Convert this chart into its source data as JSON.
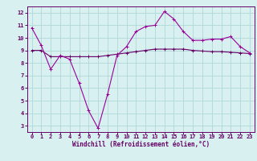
{
  "xlabel": "Windchill (Refroidissement éolien,°C)",
  "x_values": [
    0,
    1,
    2,
    3,
    4,
    5,
    6,
    7,
    8,
    9,
    10,
    11,
    12,
    13,
    14,
    15,
    16,
    17,
    18,
    19,
    20,
    21,
    22,
    23
  ],
  "line1_y": [
    10.8,
    9.4,
    7.5,
    8.6,
    8.3,
    6.4,
    4.2,
    2.8,
    5.5,
    8.6,
    9.3,
    10.5,
    10.9,
    11.0,
    12.1,
    11.5,
    10.5,
    9.8,
    9.8,
    9.9,
    9.9,
    10.1,
    9.3,
    8.8
  ],
  "line2_y": [
    9.0,
    9.0,
    8.5,
    8.5,
    8.5,
    8.5,
    8.5,
    8.5,
    8.6,
    8.7,
    8.8,
    8.9,
    9.0,
    9.1,
    9.1,
    9.1,
    9.1,
    9.0,
    8.95,
    8.9,
    8.9,
    8.85,
    8.8,
    8.75
  ],
  "line1_color": "#990099",
  "line2_color": "#660066",
  "bg_color": "#d8f0f0",
  "grid_color": "#b0d8d8",
  "ylim": [
    2.5,
    12.5
  ],
  "xlim": [
    -0.5,
    23.5
  ],
  "yticks": [
    3,
    4,
    5,
    6,
    7,
    8,
    9,
    10,
    11,
    12
  ],
  "xticks": [
    0,
    1,
    2,
    3,
    4,
    5,
    6,
    7,
    8,
    9,
    10,
    11,
    12,
    13,
    14,
    15,
    16,
    17,
    18,
    19,
    20,
    21,
    22,
    23
  ],
  "tick_fontsize": 5,
  "xlabel_fontsize": 5.5
}
